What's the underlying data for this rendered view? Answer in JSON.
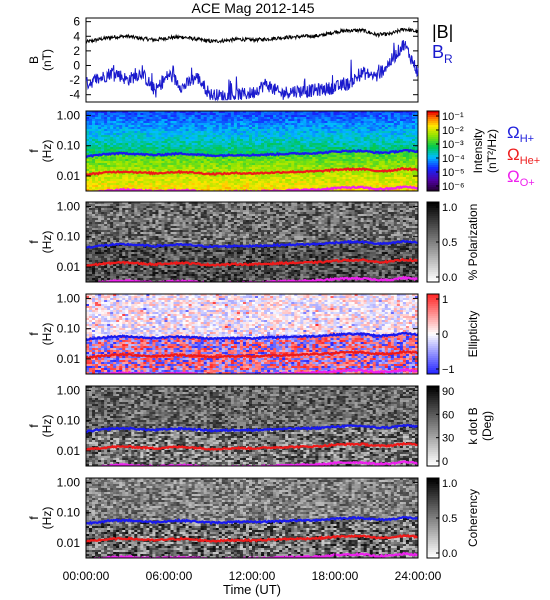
{
  "title": "ACE Mag 2012-145",
  "xlabel": "Time (UT)",
  "x_ticks": [
    "00:00:00",
    "06:00:00",
    "12:00:00",
    "18:00:00",
    "24:00:00"
  ],
  "chart_data": [
    {
      "type": "line",
      "ylabel": "B",
      "ylabel_unit": "(nT)",
      "ylim": [
        -5,
        6.5
      ],
      "y_ticks": [
        "6",
        "4",
        "2",
        "0",
        "-2",
        "-4"
      ],
      "y_tick_values": [
        6,
        4,
        2,
        0,
        -2,
        -4
      ],
      "legend": [
        "|B|",
        "B",
        "R"
      ],
      "colors": {
        "B": "#000000",
        "BR": "#1a1acd"
      },
      "series": [
        {
          "name": "|B|",
          "x": [
            0,
            1,
            2,
            3,
            4,
            5,
            6,
            7,
            8,
            9,
            10,
            11,
            12,
            13,
            14,
            15,
            16,
            17,
            18,
            19,
            20,
            21,
            22,
            23,
            24
          ],
          "y": [
            3.2,
            3.6,
            3.9,
            4.0,
            3.7,
            3.5,
            3.8,
            3.9,
            3.6,
            3.3,
            3.4,
            3.6,
            3.5,
            3.6,
            3.8,
            3.9,
            4.0,
            4.1,
            4.6,
            4.8,
            4.8,
            4.2,
            4.3,
            5.0,
            4.6
          ]
        },
        {
          "name": "BR",
          "x": [
            0,
            1,
            2,
            3,
            4,
            5,
            6,
            7,
            8,
            9,
            10,
            11,
            12,
            13,
            14,
            15,
            16,
            17,
            18,
            19,
            20,
            21,
            22,
            23,
            24
          ],
          "y": [
            -2.5,
            -1.8,
            -0.8,
            -2.0,
            -1.0,
            -3.5,
            -1.2,
            -3.0,
            -1.5,
            -4.0,
            -4.2,
            -4.0,
            -3.8,
            -2.5,
            -3.8,
            -3.5,
            -3.5,
            -3.3,
            -3.0,
            -2.5,
            -1.0,
            -1.5,
            0.5,
            3.0,
            -1.0
          ]
        }
      ]
    },
    {
      "type": "heatmap",
      "ylabel": "f",
      "ylabel_unit": "(Hz)",
      "y_ticks": [
        "1.00",
        "0.10",
        "0.01"
      ],
      "cbar_label": "Intensity",
      "cbar_unit": "(nT²/Hz)",
      "cbar_ticks": [
        "10⁻¹",
        "10⁻²",
        "10⁻³",
        "10⁻⁴",
        "10⁻⁵",
        "10⁻⁶"
      ],
      "legend": [
        {
          "symbol": "Ω",
          "sub": "H+",
          "color": "#2222dd"
        },
        {
          "symbol": "Ω",
          "sub": "He+",
          "color": "#ee2020"
        },
        {
          "symbol": "Ω",
          "sub": "O+",
          "color": "#ee22ee"
        }
      ]
    },
    {
      "type": "heatmap",
      "ylabel": "f",
      "ylabel_unit": "(Hz)",
      "y_ticks": [
        "1.00",
        "0.10",
        "0.01"
      ],
      "cbar_label": "% Polarization",
      "cbar_unit": "",
      "cbar_ticks": [
        "1.0",
        "0.5",
        "0.0"
      ]
    },
    {
      "type": "heatmap",
      "ylabel": "f",
      "ylabel_unit": "(Hz)",
      "y_ticks": [
        "1.00",
        "0.10",
        "0.01"
      ],
      "cbar_label": "Ellipticity",
      "cbar_unit": "",
      "cbar_ticks": [
        "1",
        "0",
        "−1"
      ]
    },
    {
      "type": "heatmap",
      "ylabel": "f",
      "ylabel_unit": "(Hz)",
      "y_ticks": [
        "1.00",
        "0.10",
        "0.01"
      ],
      "cbar_label": "k dot B",
      "cbar_unit": "(Deg)",
      "cbar_ticks": [
        "90",
        "60",
        "30",
        "0"
      ]
    },
    {
      "type": "heatmap",
      "ylabel": "f",
      "ylabel_unit": "(Hz)",
      "y_ticks": [
        "1.00",
        "0.10",
        "0.01"
      ],
      "cbar_label": "Coherency",
      "cbar_unit": "",
      "cbar_ticks": [
        "1.0",
        "0.5",
        "0.0"
      ]
    }
  ],
  "gyro_lines": {
    "hours": [
      0,
      1,
      2,
      3,
      4,
      5,
      6,
      7,
      8,
      9,
      10,
      11,
      12,
      13,
      14,
      15,
      16,
      17,
      18,
      19,
      20,
      21,
      22,
      23,
      24
    ],
    "H_hz": [
      0.044,
      0.05,
      0.055,
      0.056,
      0.052,
      0.049,
      0.053,
      0.055,
      0.051,
      0.047,
      0.048,
      0.05,
      0.049,
      0.051,
      0.053,
      0.055,
      0.056,
      0.058,
      0.064,
      0.067,
      0.067,
      0.059,
      0.06,
      0.07,
      0.064
    ],
    "He_hz": [
      0.011,
      0.0125,
      0.0137,
      0.014,
      0.013,
      0.0122,
      0.0133,
      0.0137,
      0.0127,
      0.0117,
      0.012,
      0.0125,
      0.0122,
      0.0127,
      0.0133,
      0.0137,
      0.014,
      0.0145,
      0.016,
      0.0168,
      0.0168,
      0.0147,
      0.015,
      0.0175,
      0.016
    ],
    "O_hz": [
      0.0028,
      0.0031,
      0.0034,
      0.0035,
      0.0033,
      0.0031,
      0.0033,
      0.0034,
      0.0032,
      0.0029,
      0.003,
      0.0031,
      0.0031,
      0.0032,
      0.0033,
      0.0034,
      0.0035,
      0.0036,
      0.004,
      0.0042,
      0.0042,
      0.0037,
      0.0038,
      0.0044,
      0.004
    ]
  }
}
